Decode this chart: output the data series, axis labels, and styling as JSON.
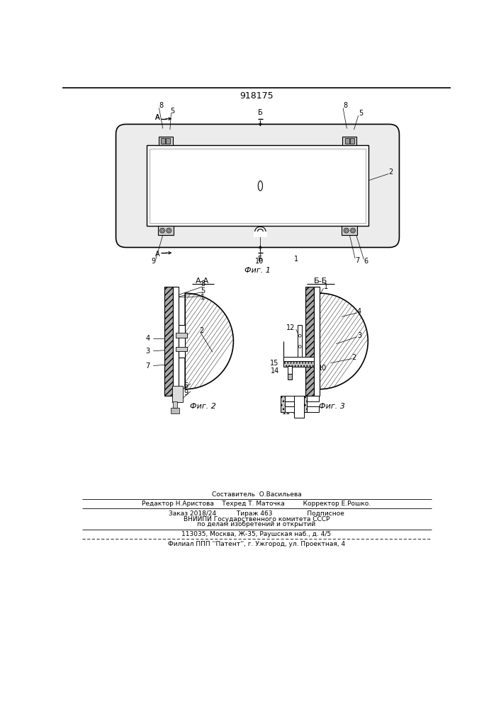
{
  "patent_number": "918175",
  "background_color": "#ffffff",
  "line_color": "#000000",
  "fig1_caption": "Фиг. 1",
  "fig2_caption": "Фиг. 2",
  "fig3_caption": "Фиг. 3",
  "section_aa": "А-А",
  "section_bb": "Б-Б",
  "footer_line0": "Составитель  О.Васильева",
  "footer_line1": "Редактор Н.Аристова    Техред Т. Маточка         Корректор Е.Рошко.",
  "footer_line2": "Заказ 2018/24          Тираж 463                 Подписное",
  "footer_line3": "ВНИИПИ Государственного комитета СССР",
  "footer_line4": "по делам изобретений и открытий",
  "footer_line5": "113035, Москва, Ж-35, Раушская наб., д. 4/5",
  "footer_line6": "Филиал ППП ''Патент'', г. Ужгород, ул. Проектная, 4"
}
